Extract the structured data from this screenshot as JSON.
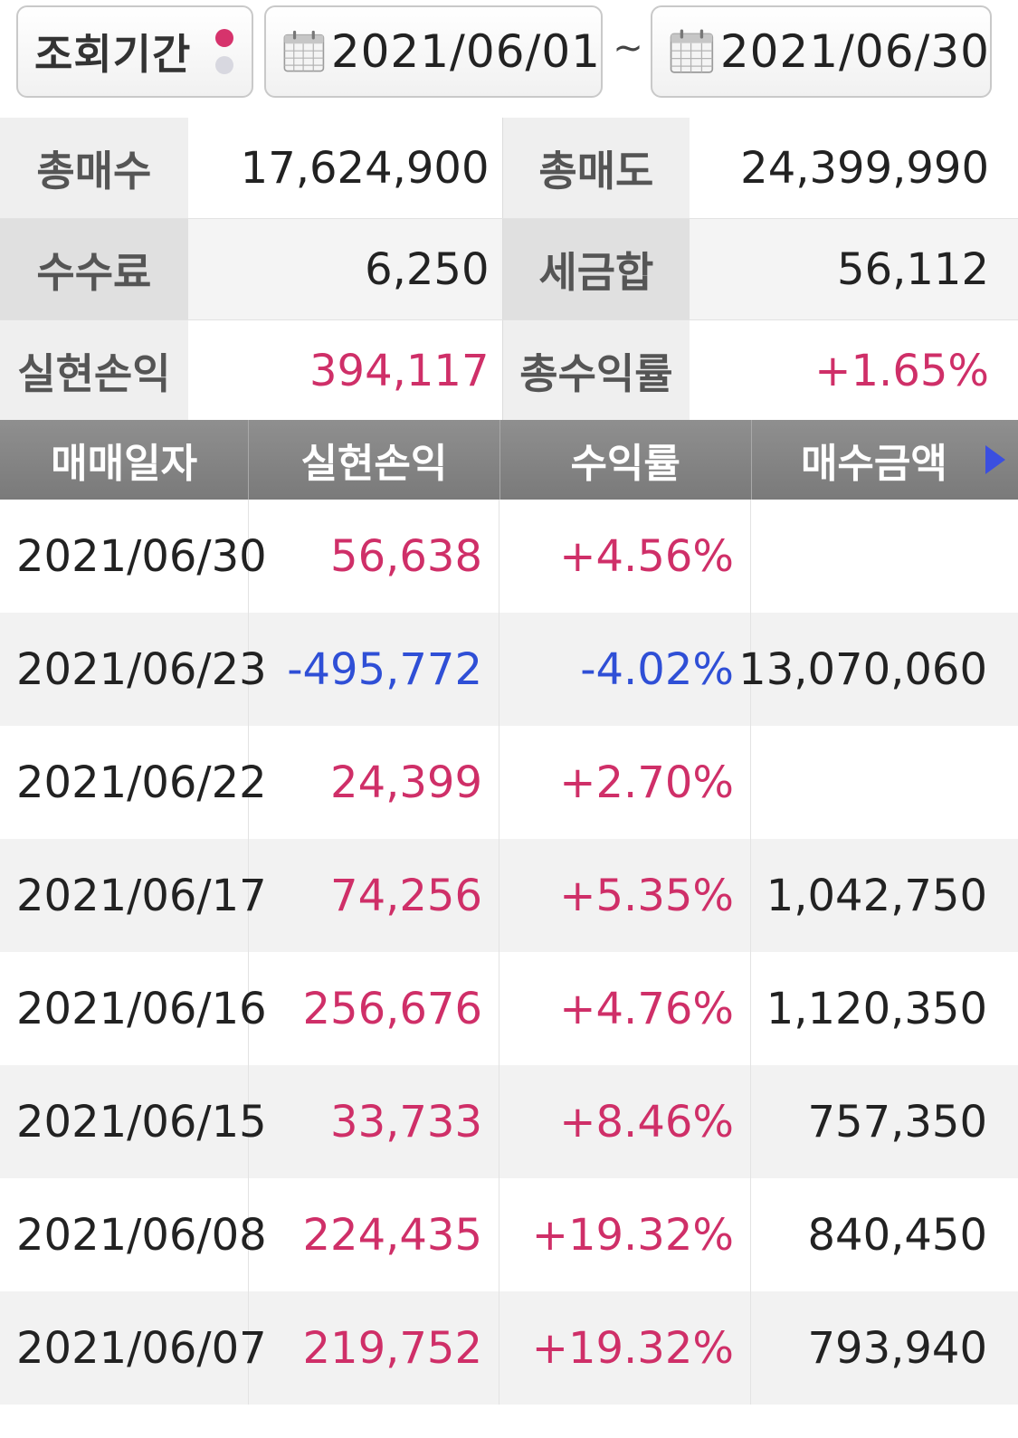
{
  "filter": {
    "period_label": "조회기간",
    "start_date": "2021/06/01",
    "separator": "~",
    "end_date": "2021/06/30",
    "icons": {
      "calendar": "calendar-icon"
    }
  },
  "summary": {
    "total_buy_label": "총매수",
    "total_buy": "17,624,900",
    "total_sell_label": "총매도",
    "total_sell": "24,399,990",
    "fee_label": "수수료",
    "fee": "6,250",
    "tax_label": "세금합",
    "tax": "56,112",
    "realized_label": "실현손익",
    "realized": "394,117",
    "total_return_label": "총수익률",
    "total_return": "+1.65%"
  },
  "table": {
    "headers": [
      "매매일자",
      "실현손익",
      "수익률",
      "매수금액"
    ],
    "rows": [
      {
        "date": "2021/06/30",
        "pnl": "56,638",
        "rate": "+4.56%",
        "buy": ""
      },
      {
        "date": "2021/06/23",
        "pnl": "-495,772",
        "rate": "-4.02%",
        "buy": "13,070,060"
      },
      {
        "date": "2021/06/22",
        "pnl": "24,399",
        "rate": "+2.70%",
        "buy": ""
      },
      {
        "date": "2021/06/17",
        "pnl": "74,256",
        "rate": "+5.35%",
        "buy": "1,042,750"
      },
      {
        "date": "2021/06/16",
        "pnl": "256,676",
        "rate": "+4.76%",
        "buy": "1,120,350"
      },
      {
        "date": "2021/06/15",
        "pnl": "33,733",
        "rate": "+8.46%",
        "buy": "757,350"
      },
      {
        "date": "2021/06/08",
        "pnl": "224,435",
        "rate": "+19.32%",
        "buy": "840,450"
      },
      {
        "date": "2021/06/07",
        "pnl": "219,752",
        "rate": "+19.32%",
        "buy": "793,940"
      }
    ]
  },
  "colors": {
    "positive": "#cf2f68",
    "negative": "#2f4fd6",
    "header_bg": "#858585"
  }
}
